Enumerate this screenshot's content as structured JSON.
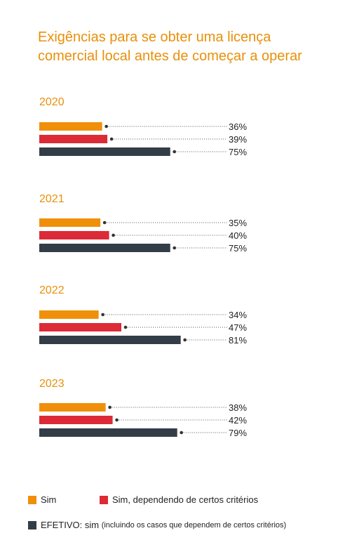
{
  "title_lines": [
    "Exigências para se obter uma licença",
    "comercial local antes de começar a operar"
  ],
  "colors": {
    "title": "#e8900a",
    "sim": "#f0900a",
    "dependendo": "#dc2b37",
    "efetivo": "#333d48"
  },
  "legend": {
    "sim": "Sim",
    "dependendo": "Sim, dependendo de certos critérios",
    "efetivo_main": "EFETIVO: sim",
    "efetivo_note": "(incluindo os casos que dependem de certos critérios)"
  },
  "chart_data": {
    "type": "bar",
    "orientation": "horizontal",
    "categories": [
      "2020",
      "2021",
      "2022",
      "2023"
    ],
    "series": [
      {
        "name": "Sim",
        "values": [
          36,
          35,
          34,
          38
        ]
      },
      {
        "name": "Sim, dependendo de certos critérios",
        "values": [
          39,
          40,
          47,
          42
        ]
      },
      {
        "name": "EFETIVO: sim (incluindo os casos que dependem de certos critérios)",
        "values": [
          75,
          75,
          81,
          79
        ]
      }
    ],
    "value_labels": [
      [
        "36%",
        "39%",
        "75%"
      ],
      [
        "35%",
        "40%",
        "75%"
      ],
      [
        "34%",
        "47%",
        "81%"
      ],
      [
        "38%",
        "42%",
        "79%"
      ]
    ],
    "unit": "%",
    "xlim": [
      0,
      100
    ],
    "grid": false,
    "legend_position": "bottom"
  }
}
